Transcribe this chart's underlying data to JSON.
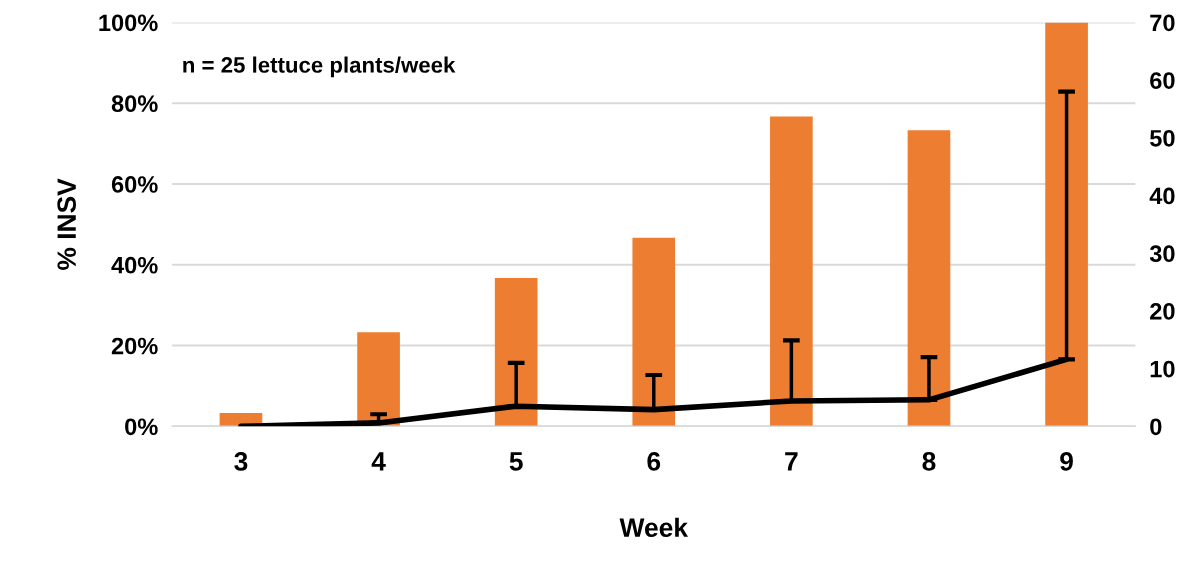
{
  "chart_data": {
    "type": "bar",
    "xlabel": "Week",
    "ylabel": "% INSV",
    "annotations": [
      "n = 25 lettuce plants/week"
    ],
    "categories": [
      "3",
      "4",
      "5",
      "6",
      "7",
      "8",
      "9"
    ],
    "series": [
      {
        "color": "#ed7d31",
        "values": [
          3.3,
          23.3,
          36.7,
          46.7,
          76.7,
          73.3,
          100
        ]
      },
      {
        "type": "line",
        "axis": "y2",
        "color": "#000000",
        "values": [
          0,
          0.6,
          3.5,
          2.9,
          4.4,
          4.6,
          11.6
        ],
        "errors": [
          null,
          [
            0.6,
            2.1
          ],
          [
            3.5,
            11
          ],
          [
            2.9,
            8.9
          ],
          [
            4.4,
            14.9
          ],
          [
            4.6,
            12
          ],
          [
            11.6,
            58
          ]
        ]
      }
    ],
    "ylim": [
      0,
      100
    ],
    "yticks": [
      {
        "value": 0,
        "label": "0%"
      },
      {
        "value": 20,
        "label": "20%"
      },
      {
        "value": 40,
        "label": "40%"
      },
      {
        "value": 60,
        "label": "60%"
      },
      {
        "value": 80,
        "label": "80%"
      },
      {
        "value": 100,
        "label": "100%"
      }
    ],
    "y2lim": [
      0,
      70
    ],
    "y2ticks": [
      0,
      10,
      20,
      30,
      40,
      50,
      60,
      70
    ],
    "grid": "y",
    "marker": "none",
    "line_style": "solid"
  }
}
